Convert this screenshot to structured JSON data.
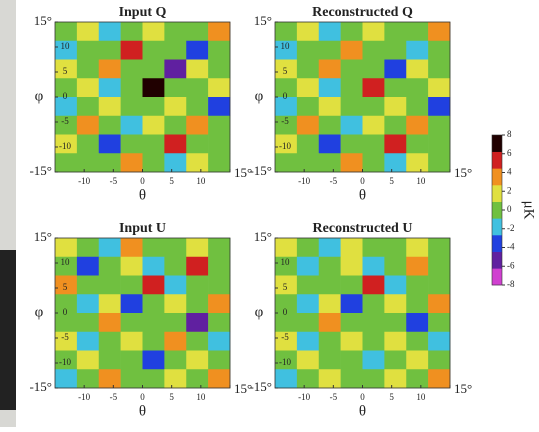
{
  "chart_data": [
    {
      "type": "heatmap",
      "title": "Input Q",
      "x_label": "θ",
      "y_label": "φ",
      "xlim": [
        -15,
        15
      ],
      "ylim": [
        -15,
        15
      ],
      "xticks": [
        -10,
        -5,
        0,
        5,
        10,
        {
          "value": 15,
          "label": "15°"
        }
      ],
      "yticks": [
        {
          "value": -15,
          "label": "-15°"
        },
        -10,
        -5,
        0,
        5,
        10,
        {
          "value": 15,
          "label": "15°"
        }
      ],
      "z": [
        [
          0,
          1,
          -3,
          0,
          2,
          -1,
          0,
          4
        ],
        [
          -2,
          0,
          0,
          5,
          -1,
          0,
          -4,
          0
        ],
        [
          1,
          -1,
          3,
          0,
          0,
          -6,
          1,
          0
        ],
        [
          0,
          2,
          -2,
          0,
          7,
          0,
          -1,
          2
        ],
        [
          -3,
          0,
          1,
          -1,
          0,
          2,
          0,
          -5
        ],
        [
          0,
          4,
          0,
          -2,
          1,
          0,
          3,
          0
        ],
        [
          2,
          0,
          -5,
          0,
          -1,
          6,
          0,
          -1
        ],
        [
          0,
          -1,
          0,
          3,
          0,
          -2,
          1,
          0
        ]
      ]
    },
    {
      "type": "heatmap",
      "title": "Reconstructed Q",
      "x_label": "θ",
      "y_label": "φ",
      "xlim": [
        -15,
        15
      ],
      "ylim": [
        -15,
        15
      ],
      "xticks": [
        -10,
        -5,
        0,
        5,
        10,
        {
          "value": 15,
          "label": "15°"
        }
      ],
      "yticks": [
        {
          "value": -15,
          "label": "-15°"
        },
        -10,
        -5,
        0,
        5,
        10,
        {
          "value": 15,
          "label": "15°"
        }
      ],
      "z": [
        [
          0,
          1,
          -2,
          0,
          2,
          -1,
          0,
          3
        ],
        [
          -2,
          0,
          0,
          4,
          -1,
          0,
          -3,
          0
        ],
        [
          1,
          -1,
          3,
          0,
          0,
          -5,
          1,
          0
        ],
        [
          0,
          2,
          -2,
          0,
          6,
          0,
          -1,
          2
        ],
        [
          -3,
          0,
          1,
          -1,
          0,
          2,
          0,
          -4
        ],
        [
          0,
          3,
          0,
          -2,
          1,
          0,
          3,
          0
        ],
        [
          2,
          0,
          -4,
          0,
          -1,
          5,
          0,
          -1
        ],
        [
          0,
          -1,
          0,
          3,
          0,
          -2,
          1,
          0
        ]
      ]
    },
    {
      "type": "heatmap",
      "title": "Input U",
      "x_label": "θ",
      "y_label": "φ",
      "xlim": [
        -15,
        15
      ],
      "ylim": [
        -15,
        15
      ],
      "xticks": [
        -10,
        -5,
        0,
        5,
        10,
        {
          "value": 15,
          "label": "15°"
        }
      ],
      "yticks": [
        {
          "value": -15,
          "label": "-15°"
        },
        -10,
        -5,
        0,
        5,
        10,
        {
          "value": 15,
          "label": "15°"
        }
      ],
      "z": [
        [
          1,
          0,
          -2,
          3,
          0,
          -1,
          2,
          0
        ],
        [
          0,
          -4,
          0,
          1,
          -2,
          0,
          5,
          -1
        ],
        [
          3,
          0,
          -1,
          0,
          6,
          -2,
          0,
          0
        ],
        [
          0,
          -2,
          2,
          -5,
          0,
          1,
          0,
          3
        ],
        [
          -1,
          0,
          4,
          0,
          -1,
          0,
          -6,
          0
        ],
        [
          2,
          -3,
          0,
          1,
          0,
          3,
          0,
          -2
        ],
        [
          0,
          1,
          -1,
          0,
          -4,
          0,
          2,
          0
        ],
        [
          -2,
          0,
          3,
          -1,
          0,
          1,
          0,
          4
        ]
      ]
    },
    {
      "type": "heatmap",
      "title": "Reconstructed U",
      "x_label": "θ",
      "y_label": "φ",
      "xlim": [
        -15,
        15
      ],
      "ylim": [
        -15,
        15
      ],
      "xticks": [
        -10,
        -5,
        0,
        5,
        10,
        {
          "value": 15,
          "label": "15°"
        }
      ],
      "yticks": [
        {
          "value": -15,
          "label": "-15°"
        },
        -10,
        -5,
        0,
        5,
        10,
        {
          "value": 15,
          "label": "15°"
        }
      ],
      "z": [
        [
          1,
          0,
          -2,
          2,
          0,
          -1,
          2,
          0
        ],
        [
          0,
          -3,
          0,
          1,
          -2,
          0,
          4,
          -1
        ],
        [
          2,
          0,
          -1,
          0,
          5,
          -2,
          0,
          0
        ],
        [
          0,
          -2,
          2,
          -4,
          0,
          1,
          0,
          3
        ],
        [
          -1,
          0,
          3,
          0,
          -1,
          0,
          -5,
          0
        ],
        [
          2,
          -3,
          0,
          1,
          0,
          2,
          0,
          -2
        ],
        [
          0,
          1,
          -1,
          0,
          -3,
          0,
          2,
          0
        ],
        [
          -2,
          0,
          2,
          -1,
          0,
          1,
          0,
          3
        ]
      ]
    }
  ],
  "colorbar": {
    "label": "μK",
    "lim": [
      -8,
      8
    ],
    "ticks": [
      8,
      6,
      4,
      2,
      0,
      -2,
      -4,
      -6,
      -8
    ],
    "colors": [
      "#d040d0",
      "#6020a0",
      "#2040e0",
      "#40c0e0",
      "#70c040",
      "#e0e040",
      "#f09020",
      "#d02020",
      "#200000"
    ]
  }
}
